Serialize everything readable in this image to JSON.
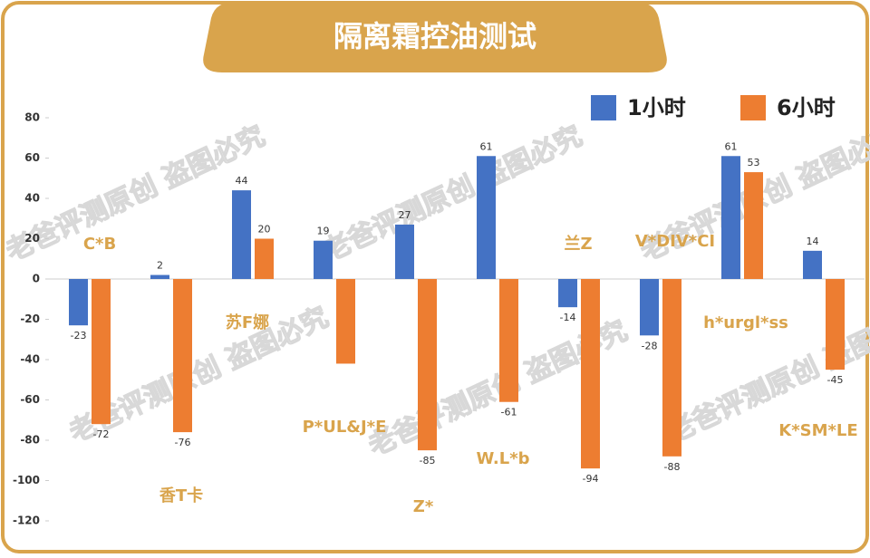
{
  "chart_data": {
    "type": "bar",
    "title": "隔离霜控油测试",
    "watermark": "老爸评测原创 盗图必究",
    "categories": [
      "C*B",
      "香T卡",
      "苏F娜",
      "P*UL&J*E",
      "Z*",
      "W.L*b",
      "兰Z",
      "V*DIV*CI",
      "h*urgl*ss",
      "K*SM*LE"
    ],
    "series": [
      {
        "name": "1小时",
        "color": "#4472c4",
        "values": [
          -23,
          2,
          44,
          19,
          27,
          61,
          -14,
          -28,
          61,
          14
        ]
      },
      {
        "name": "6小时",
        "color": "#ed7d31",
        "values": [
          -72,
          -76,
          20,
          -42,
          -85,
          -61,
          -94,
          -88,
          53,
          -45
        ],
        "value_labels": [
          "-72",
          "-76",
          "20",
          null,
          "-85",
          "-61",
          "-94",
          "-88",
          "53",
          "-45"
        ]
      }
    ],
    "ylim": [
      -120,
      80
    ],
    "yticks": [
      -120,
      -100,
      -80,
      -60,
      -40,
      -20,
      0,
      20,
      40,
      60,
      80
    ],
    "grid": false
  }
}
